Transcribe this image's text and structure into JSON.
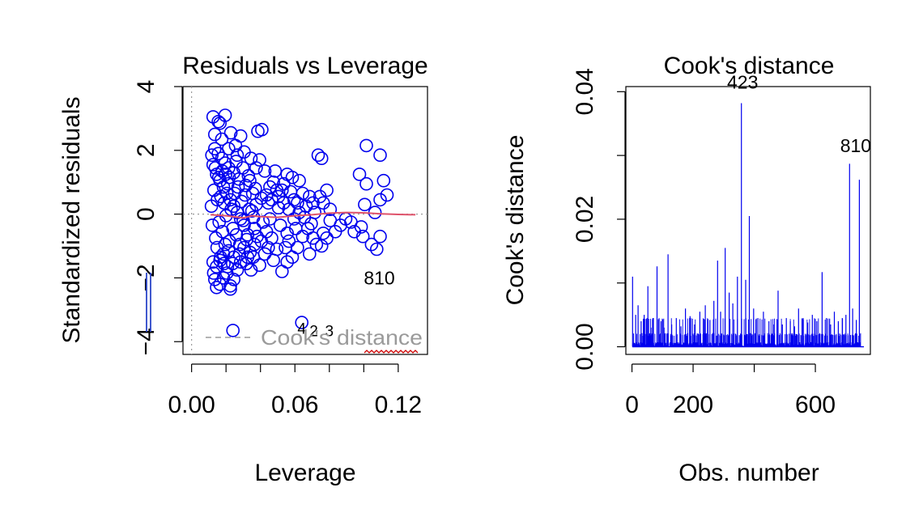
{
  "chart_data": [
    {
      "type": "scatter",
      "title": "Residuals vs Leverage",
      "xlabel": "Leverage",
      "ylabel": "Standardized residuals",
      "xlim": [
        -0.005,
        0.137
      ],
      "ylim": [
        -4.4,
        4.0
      ],
      "xticks": [
        0.0,
        0.06,
        0.12
      ],
      "xtick_labels": [
        "0.00",
        "0.06",
        "0.12"
      ],
      "xticks_minor": [
        0.0,
        0.02,
        0.04,
        0.06,
        0.08,
        0.1,
        0.12
      ],
      "yticks": [
        -4,
        -2,
        0,
        2,
        4
      ],
      "ytick_labels": [
        "−4",
        "−2",
        "0",
        "2",
        "4"
      ],
      "point_color": "#0000ee",
      "smooth_color": "#df536b",
      "legend_label": "Cook's distance",
      "annotations": [
        {
          "text": "810",
          "x": 0.109,
          "y": -2.2
        },
        {
          "text": "4",
          "x": 0.064,
          "y": -3.75
        },
        {
          "text": "2",
          "x": 0.071,
          "y": -3.83
        },
        {
          "text": "3",
          "x": 0.08,
          "y": -3.83
        }
      ],
      "points": [
        [
          0.0125,
          3.05
        ],
        [
          0.0155,
          2.9
        ],
        [
          0.0195,
          3.1
        ],
        [
          0.0165,
          2.85
        ],
        [
          0.0175,
          2.35
        ],
        [
          0.0135,
          2.5
        ],
        [
          0.0228,
          2.55
        ],
        [
          0.0255,
          2.15
        ],
        [
          0.0285,
          2.45
        ],
        [
          0.0385,
          2.6
        ],
        [
          0.0408,
          2.65
        ],
        [
          0.0215,
          2.05
        ],
        [
          0.0265,
          1.85
        ],
        [
          0.0305,
          1.95
        ],
        [
          0.0345,
          1.75
        ],
        [
          0.0375,
          1.45
        ],
        [
          0.0395,
          1.7
        ],
        [
          0.0425,
          1.35
        ],
        [
          0.0485,
          1.35
        ],
        [
          0.0555,
          1.25
        ],
        [
          0.0585,
          1.15
        ],
        [
          0.0625,
          1.05
        ],
        [
          0.0645,
          0.65
        ],
        [
          0.0525,
          0.75
        ],
        [
          0.0455,
          0.85
        ],
        [
          0.0505,
          0.55
        ],
        [
          0.0595,
          0.45
        ],
        [
          0.0665,
          0.25
        ],
        [
          0.0685,
          0.55
        ],
        [
          0.0705,
          0.35
        ],
        [
          0.0565,
          0.15
        ],
        [
          0.0735,
          1.85
        ],
        [
          0.0755,
          1.75
        ],
        [
          0.0785,
          0.75
        ],
        [
          0.0765,
          0.35
        ],
        [
          0.0805,
          0.15
        ],
        [
          0.1015,
          2.15
        ],
        [
          0.1095,
          1.85
        ],
        [
          0.0975,
          1.25
        ],
        [
          0.1015,
          0.95
        ],
        [
          0.1115,
          1.05
        ],
        [
          0.1135,
          0.6
        ],
        [
          0.1095,
          0.45
        ],
        [
          0.1005,
          0.3
        ],
        [
          0.1065,
          0.05
        ],
        [
          0.0865,
          -0.35
        ],
        [
          0.0945,
          -0.55
        ],
        [
          0.0995,
          -0.7
        ],
        [
          0.0985,
          -0.4
        ],
        [
          0.1095,
          -0.7
        ],
        [
          0.1045,
          -0.95
        ],
        [
          0.1075,
          -1.1
        ],
        [
          0.0925,
          -0.25
        ],
        [
          0.0805,
          -0.2
        ],
        [
          0.0765,
          -0.6
        ],
        [
          0.0725,
          -0.95
        ],
        [
          0.0785,
          -0.75
        ],
        [
          0.0695,
          -0.3
        ],
        [
          0.0645,
          -0.7
        ],
        [
          0.0615,
          -1.05
        ],
        [
          0.0585,
          -1.35
        ],
        [
          0.0555,
          -1.5
        ],
        [
          0.0525,
          -1.8
        ],
        [
          0.0495,
          -1.1
        ],
        [
          0.0465,
          -0.75
        ],
        [
          0.0425,
          -1.25
        ],
        [
          0.0395,
          -1.6
        ],
        [
          0.0365,
          -0.95
        ],
        [
          0.0345,
          -1.75
        ],
        [
          0.0325,
          -1.35
        ],
        [
          0.0305,
          -1.05
        ],
        [
          0.0285,
          -1.5
        ],
        [
          0.0265,
          -1.75
        ],
        [
          0.0245,
          -2.05
        ],
        [
          0.0225,
          -2.25
        ],
        [
          0.0205,
          -1.85
        ],
        [
          0.0185,
          -2.0
        ],
        [
          0.0165,
          -2.2
        ],
        [
          0.0145,
          -2.3
        ],
        [
          0.0135,
          -2.05
        ],
        [
          0.0225,
          -2.35
        ],
        [
          0.0145,
          -1.65
        ],
        [
          0.0165,
          -1.45
        ],
        [
          0.0185,
          -1.25
        ],
        [
          0.0125,
          -1.5
        ],
        [
          0.0245,
          -1.35
        ],
        [
          0.0215,
          -1.15
        ],
        [
          0.0195,
          -0.95
        ],
        [
          0.0325,
          -0.65
        ],
        [
          0.0365,
          -0.45
        ],
        [
          0.0415,
          -0.25
        ],
        [
          0.0455,
          -0.15
        ],
        [
          0.0515,
          -0.35
        ],
        [
          0.0555,
          -0.6
        ],
        [
          0.0605,
          -0.45
        ],
        [
          0.0655,
          -0.1
        ],
        [
          0.0505,
          0.2
        ],
        [
          0.0445,
          0.35
        ],
        [
          0.0405,
          0.5
        ],
        [
          0.0355,
          0.65
        ],
        [
          0.0315,
          0.9
        ],
        [
          0.0275,
          1.1
        ],
        [
          0.0245,
          1.3
        ],
        [
          0.0215,
          1.45
        ],
        [
          0.0195,
          1.6
        ],
        [
          0.0175,
          1.75
        ],
        [
          0.0155,
          1.9
        ],
        [
          0.0135,
          2.05
        ],
        [
          0.0125,
          1.55
        ],
        [
          0.0145,
          1.25
        ],
        [
          0.0165,
          1.05
        ],
        [
          0.0185,
          0.85
        ],
        [
          0.0205,
          0.65
        ],
        [
          0.0225,
          0.45
        ],
        [
          0.0245,
          0.25
        ],
        [
          0.0265,
          0.05
        ],
        [
          0.0285,
          -0.15
        ],
        [
          0.0305,
          -0.35
        ],
        [
          0.0335,
          0.15
        ],
        [
          0.0375,
          0.3
        ],
        [
          0.0435,
          0.6
        ],
        [
          0.0475,
          1.0
        ],
        [
          0.0535,
          0.95
        ],
        [
          0.0575,
          0.7
        ],
        [
          0.0615,
          0.35
        ],
        [
          0.0715,
          0.05
        ],
        [
          0.0115,
          0.25
        ],
        [
          0.012,
          -0.35
        ],
        [
          0.013,
          0.75
        ],
        [
          0.014,
          -0.75
        ],
        [
          0.015,
          0.45
        ],
        [
          0.016,
          -0.25
        ],
        [
          0.017,
          0.55
        ],
        [
          0.018,
          -0.55
        ],
        [
          0.019,
          0.35
        ],
        [
          0.02,
          -0.05
        ],
        [
          0.021,
          0.95
        ],
        [
          0.022,
          -0.85
        ],
        [
          0.023,
          0.15
        ],
        [
          0.024,
          -0.45
        ],
        [
          0.025,
          0.65
        ],
        [
          0.026,
          -0.65
        ],
        [
          0.027,
          0.85
        ],
        [
          0.028,
          -0.95
        ],
        [
          0.029,
          0.4
        ],
        [
          0.03,
          -0.2
        ],
        [
          0.031,
          0.6
        ],
        [
          0.032,
          -0.8
        ],
        [
          0.033,
          1.2
        ],
        [
          0.034,
          -1.2
        ],
        [
          0.035,
          0.1
        ],
        [
          0.036,
          -0.1
        ],
        [
          0.037,
          0.8
        ],
        [
          0.038,
          -0.7
        ],
        [
          0.0118,
          1.85
        ],
        [
          0.0128,
          -1.85
        ],
        [
          0.0138,
          1.45
        ],
        [
          0.0148,
          -1.05
        ],
        [
          0.0158,
          1.15
        ],
        [
          0.0168,
          -1.35
        ],
        [
          0.0178,
          1.35
        ],
        [
          0.0188,
          -1.55
        ],
        [
          0.0198,
          1.25
        ],
        [
          0.0208,
          -1.65
        ],
        [
          0.0218,
          1.15
        ],
        [
          0.0238,
          -1.55
        ],
        [
          0.0258,
          1.65
        ],
        [
          0.0278,
          -1.25
        ],
        [
          0.0298,
          1.45
        ],
        [
          0.0318,
          -1.55
        ],
        [
          0.0338,
          1.05
        ],
        [
          0.0358,
          -1.35
        ],
        [
          0.0405,
          -0.85
        ],
        [
          0.0435,
          -0.55
        ],
        [
          0.0465,
          0.45
        ],
        [
          0.0495,
          0.75
        ],
        [
          0.0535,
          0.35
        ],
        [
          0.0565,
          -0.85
        ],
        [
          0.0595,
          -0.15
        ],
        [
          0.0625,
          0.05
        ],
        [
          0.0675,
          -0.45
        ],
        [
          0.0705,
          -0.75
        ],
        [
          0.0745,
          0.55
        ],
        [
          0.0835,
          -0.55
        ],
        [
          0.0895,
          -0.15
        ],
        [
          0.0755,
          -1.0
        ],
        [
          0.0685,
          -1.25
        ],
        [
          0.0545,
          -1.05
        ],
        [
          0.0475,
          -1.45
        ],
        [
          0.0445,
          -1.05
        ],
        [
          0.024,
          -3.65
        ],
        [
          0.064,
          -3.4
        ]
      ],
      "smooth": [
        [
          0.011,
          -0.02
        ],
        [
          0.02,
          -0.05
        ],
        [
          0.03,
          -0.12
        ],
        [
          0.035,
          -0.05
        ],
        [
          0.04,
          -0.08
        ],
        [
          0.05,
          -0.1
        ],
        [
          0.06,
          -0.05
        ],
        [
          0.07,
          -0.02
        ],
        [
          0.08,
          0.03
        ],
        [
          0.09,
          0.05
        ],
        [
          0.1,
          0.04
        ],
        [
          0.11,
          0.01
        ],
        [
          0.12,
          -0.01
        ],
        [
          0.13,
          -0.02
        ]
      ]
    },
    {
      "type": "bar",
      "title": "Cook's distance",
      "xlabel": "Obs. number",
      "ylabel": "Cook's distance",
      "xlim": [
        -20,
        780
      ],
      "ylim": [
        -0.0012,
        0.0408
      ],
      "xticks": [
        0,
        200,
        600
      ],
      "xtick_labels": [
        "0",
        "200",
        "600"
      ],
      "xticks_minor": [
        0,
        200,
        400,
        600
      ],
      "yticks": [
        0.0,
        0.01,
        0.02,
        0.03,
        0.04
      ],
      "ytick_labels": [
        "0.00",
        "",
        "0.02",
        "",
        "0.04"
      ],
      "bar_color": "#0000ee",
      "n_obs": 748,
      "annotations": [
        {
          "text": "423",
          "x": 362,
          "y": 0.0405
        },
        {
          "text": "810",
          "x": 732,
          "y": 0.0305
        }
      ],
      "spikes": [
        [
          2,
          0.011
        ],
        [
          12,
          0.005
        ],
        [
          20,
          0.0065
        ],
        [
          30,
          0.004
        ],
        [
          40,
          0.005
        ],
        [
          52,
          0.0095
        ],
        [
          62,
          0.003
        ],
        [
          70,
          0.0045
        ],
        [
          82,
          0.0126
        ],
        [
          95,
          0.004
        ],
        [
          105,
          0.003
        ],
        [
          118,
          0.0145
        ],
        [
          130,
          0.0035
        ],
        [
          145,
          0.0045
        ],
        [
          160,
          0.0032
        ],
        [
          175,
          0.006
        ],
        [
          190,
          0.0048
        ],
        [
          205,
          0.0035
        ],
        [
          222,
          0.0055
        ],
        [
          240,
          0.0065
        ],
        [
          255,
          0.0042
        ],
        [
          268,
          0.0072
        ],
        [
          280,
          0.0135
        ],
        [
          290,
          0.0055
        ],
        [
          305,
          0.0155
        ],
        [
          318,
          0.0085
        ],
        [
          330,
          0.0068
        ],
        [
          345,
          0.011
        ],
        [
          358,
          0.0382
        ],
        [
          372,
          0.0105
        ],
        [
          384,
          0.0205
        ],
        [
          398,
          0.006
        ],
        [
          412,
          0.0045
        ],
        [
          430,
          0.0055
        ],
        [
          448,
          0.004
        ],
        [
          462,
          0.0035
        ],
        [
          478,
          0.0088
        ],
        [
          492,
          0.0035
        ],
        [
          505,
          0.0045
        ],
        [
          518,
          0.004
        ],
        [
          532,
          0.0032
        ],
        [
          545,
          0.006
        ],
        [
          560,
          0.0045
        ],
        [
          575,
          0.0038
        ],
        [
          590,
          0.005
        ],
        [
          605,
          0.004
        ],
        [
          622,
          0.0117
        ],
        [
          636,
          0.0045
        ],
        [
          650,
          0.0035
        ],
        [
          662,
          0.0055
        ],
        [
          675,
          0.004
        ],
        [
          688,
          0.0045
        ],
        [
          700,
          0.005
        ],
        [
          712,
          0.0287
        ],
        [
          722,
          0.006
        ],
        [
          734,
          0.0042
        ],
        [
          744,
          0.0262
        ]
      ]
    }
  ]
}
